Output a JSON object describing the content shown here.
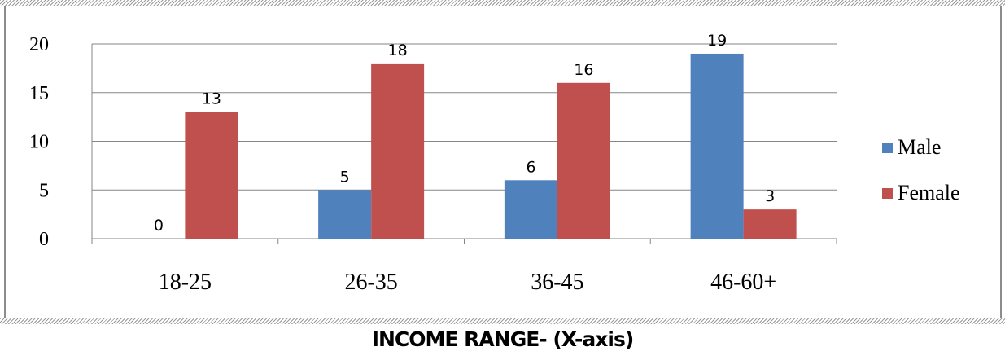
{
  "chart_data": {
    "type": "bar",
    "categories": [
      "18-25",
      "26-35",
      "36-45",
      "46-60+"
    ],
    "series": [
      {
        "name": "Male",
        "values": [
          0,
          5,
          6,
          19
        ],
        "color": "#4f81bd"
      },
      {
        "name": "Female",
        "values": [
          13,
          18,
          16,
          3
        ],
        "color": "#c0504d"
      }
    ],
    "ylim": [
      0,
      20
    ],
    "yticks": [
      0,
      5,
      10,
      15,
      20
    ],
    "grid": true,
    "legend_position": "right",
    "xlabel": "INCOME RANGE- (X-axis)"
  }
}
